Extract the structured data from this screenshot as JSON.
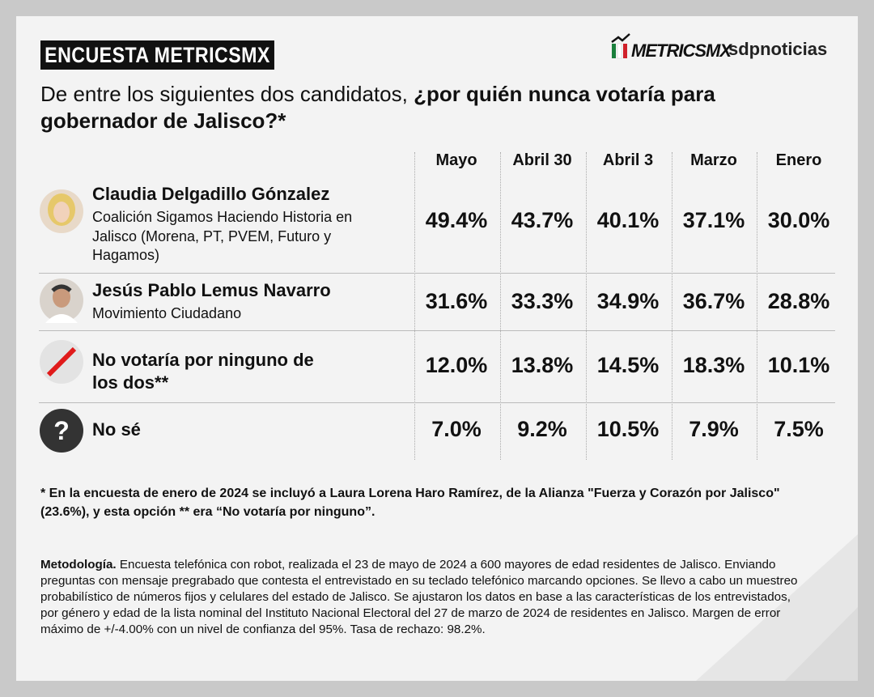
{
  "header": {
    "badge": "ENCUESTA METRICSMX",
    "logo_metrics": "METRICSMX",
    "logo_sdp": "sdpnoticias"
  },
  "question": {
    "normal": "De entre los siguientes dos candidatos, ",
    "bold": "¿por quién nunca votaría para gobernador de Jalisco?*"
  },
  "table": {
    "columns": [
      "Mayo",
      "Abril 30",
      "Abril 3",
      "Marzo",
      "Enero"
    ],
    "rows": [
      {
        "name": "Claudia Delgadillo Gónzalez",
        "subtitle": "Coalición Sigamos Haciendo Historia en Jalisco (Morena, PT, PVEM, Futuro y Hagamos)",
        "values": [
          "49.4%",
          "43.7%",
          "40.1%",
          "37.1%",
          "30.0%"
        ]
      },
      {
        "name": "Jesús Pablo Lemus Navarro",
        "subtitle": "Movimiento Ciudadano",
        "values": [
          "31.6%",
          "33.3%",
          "34.9%",
          "36.7%",
          "28.8%"
        ]
      },
      {
        "name": "No votaría por ninguno de los dos**",
        "values": [
          "12.0%",
          "13.8%",
          "14.5%",
          "18.3%",
          "10.1%"
        ]
      },
      {
        "icon": "?",
        "name": "No sé",
        "values": [
          "7.0%",
          "9.2%",
          "10.5%",
          "7.9%",
          "7.5%"
        ]
      }
    ]
  },
  "footnote": "* En la encuesta de enero de 2024 se incluyó a Laura Lorena Haro Ramírez, de la Alianza \"Fuerza y Corazón por Jalisco\" (23.6%), y esta opción ** era “No votaría por ninguno”.",
  "methodology": {
    "label": "Metodología.",
    "text": " Encuesta telefónica con robot, realizada el 23 de mayo de 2024 a 600 mayores de edad residentes de Jalisco. Enviando preguntas con mensaje pregrabado que contesta el entrevistado en su teclado telefónico marcando opciones. Se llevo a cabo un muestreo probabilístico de números fijos y celulares del estado de Jalisco. Se ajustaron los datos en base a las características de los entrevistados, por género y edad de la lista nominal del Instituto Nacional Electoral del 27 de marzo de 2024 de residentes en Jalisco. Margen de error máximo de +/-4.00% con un nivel de confianza del 95%. Tasa de rechazo: 98.2%."
  }
}
